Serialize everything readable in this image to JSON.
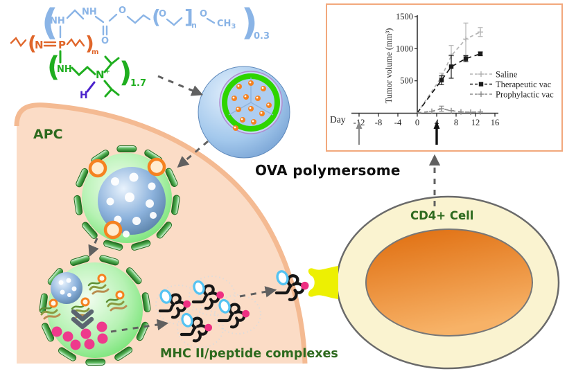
{
  "figure": {
    "apc_label": "APC",
    "ova_label": "OVA polymersome",
    "mhc_label": "MHC II/peptide complexes",
    "cd4_label": "CD4+ Cell"
  },
  "structure": {
    "peg": {
      "lparen": "(",
      "nh1": "NH",
      "nh2": "NH",
      "o_carbonyl": "O",
      "o_ester": "O",
      "bracket_open": "(",
      "bracket_o": "O",
      "bracket_close": "]",
      "n_sub": "n",
      "o_end": "O",
      "ch": "CH",
      "three": "3",
      "rparen": ")",
      "fraction": "0.3"
    },
    "backbone": {
      "lparen": "(",
      "n": "N",
      "p": "P",
      "rparen": ")",
      "m_sub": "m"
    },
    "side": {
      "lparen": "(",
      "nh": "NH",
      "n": "N",
      "plus": "+",
      "h": "H",
      "rparen": ")",
      "fraction": "1.7"
    }
  },
  "chart_data": {
    "type": "line",
    "title": "",
    "xlabel": "Day",
    "ylabel": "Tumor volume (mm³)",
    "xlim": [
      -14,
      17
    ],
    "ylim": [
      0,
      1500
    ],
    "xticks": [
      -12,
      -8,
      -4,
      0,
      4,
      8,
      12,
      16
    ],
    "yticks": [
      500,
      1000,
      1500
    ],
    "grid": false,
    "legend_position": "right",
    "series": [
      {
        "name": "Saline",
        "color": "#b4b4b4",
        "dash": "5 4",
        "marker": "plus",
        "points": [
          {
            "x": 0,
            "y": 0,
            "err": 0
          },
          {
            "x": 5,
            "y": 560,
            "err": 60
          },
          {
            "x": 7,
            "y": 890,
            "err": 160
          },
          {
            "x": 10,
            "y": 1150,
            "err": 250
          },
          {
            "x": 13,
            "y": 1260,
            "err": 70
          }
        ]
      },
      {
        "name": "Therapeutic vac",
        "color": "#1a1a1a",
        "dash": "7 5",
        "marker": "square",
        "points": [
          {
            "x": 0,
            "y": 0,
            "err": 0
          },
          {
            "x": 5,
            "y": 510,
            "err": 70
          },
          {
            "x": 7,
            "y": 720,
            "err": 180
          },
          {
            "x": 10,
            "y": 845,
            "err": 45
          },
          {
            "x": 13,
            "y": 920,
            "err": 30
          }
        ]
      },
      {
        "name": "Prophylactic vac",
        "color": "#8c8c8c",
        "dash": "6 4",
        "marker": "plus",
        "points": [
          {
            "x": 0,
            "y": 0,
            "err": 0
          },
          {
            "x": 3,
            "y": 25,
            "err": 0
          },
          {
            "x": 5,
            "y": 65,
            "err": 40
          },
          {
            "x": 7,
            "y": 35,
            "err": 0
          },
          {
            "x": 9,
            "y": 15,
            "err": 0
          },
          {
            "x": 11,
            "y": 10,
            "err": 0
          },
          {
            "x": 13,
            "y": 15,
            "err": 0
          }
        ]
      }
    ],
    "event_arrows": [
      {
        "x": -12,
        "color": "#8a8a8a"
      },
      {
        "x": 4,
        "color": "#111111"
      }
    ]
  },
  "colors": {
    "apc_fill": "#fbdcc6",
    "apc_border": "#f4ba92",
    "chart_border": "#f2a87c",
    "endosome_green": "#7ce87c",
    "membrane_dash_green": "#2e7d32",
    "sphere_blue": "#7fa8d8",
    "ova_orange": "#f58220",
    "peptide_pink": "#ee3a8c",
    "label_green": "#2d6a1e",
    "polymersome_ring": "#2ed500",
    "cd4_outer": "#faf3d0",
    "cd4_nucleus": "#e4770f",
    "receptor_yellow": "#edf002",
    "struct_blue": "#8ab4e6",
    "struct_orange": "#e0662a",
    "struct_green": "#1fae1f",
    "struct_h_purple": "#4a22cc",
    "arrow_gray": "#606060"
  }
}
